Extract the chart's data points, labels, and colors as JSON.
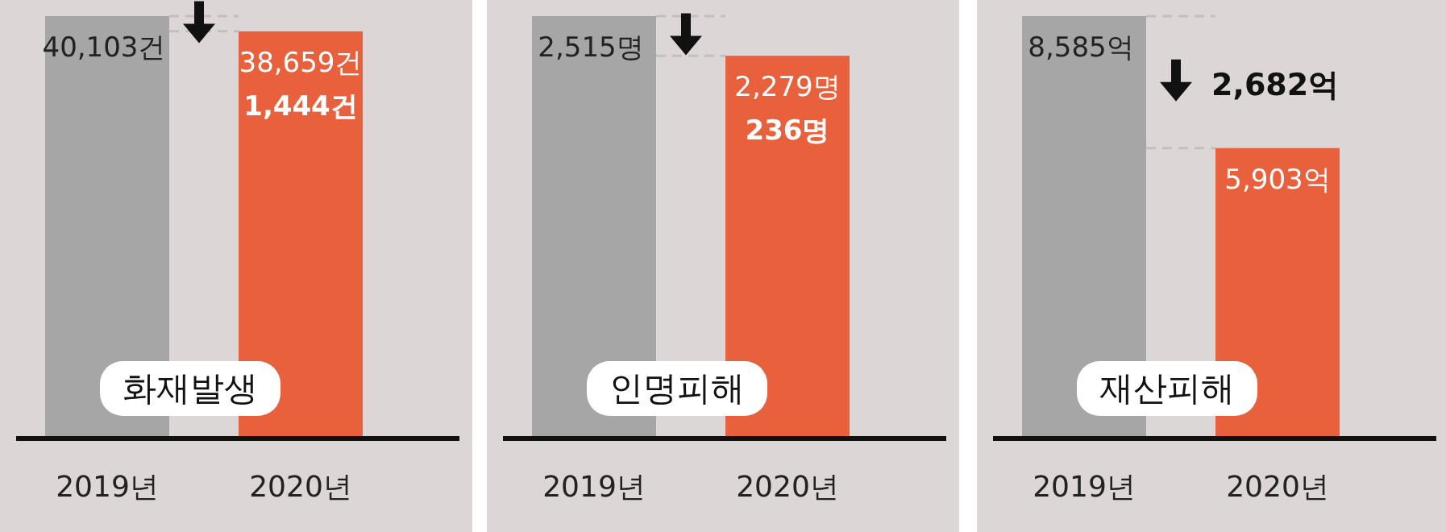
{
  "chart_data": [
    {
      "type": "bar",
      "title": "화재발생",
      "categories": [
        "2019년",
        "2020년"
      ],
      "values": [
        40103,
        38659
      ],
      "colors": [
        "#a6a6a6",
        "#e8603c"
      ],
      "value_labels": [
        "40,103건",
        "38,659건"
      ],
      "ref_lines": [
        {
          "axis": "y",
          "value": 40103,
          "line_style": "dashed",
          "color": "#c4bebe"
        },
        {
          "axis": "y",
          "value": 38659,
          "line_style": "dashed",
          "color": "#c4bebe"
        }
      ],
      "annotations": [
        "1,444건"
      ]
    },
    {
      "type": "bar",
      "title": "인명피해",
      "categories": [
        "2019년",
        "2020년"
      ],
      "values": [
        2515,
        2279
      ],
      "colors": [
        "#a6a6a6",
        "#e8603c"
      ],
      "value_labels": [
        "2,515명",
        "2,279명"
      ],
      "ref_lines": [
        {
          "axis": "y",
          "value": 2515,
          "line_style": "dashed",
          "color": "#c4bebe"
        },
        {
          "axis": "y",
          "value": 2279,
          "line_style": "dashed",
          "color": "#c4bebe"
        }
      ],
      "annotations": [
        "236명"
      ]
    },
    {
      "type": "bar",
      "title": "재산피해",
      "categories": [
        "2019년",
        "2020년"
      ],
      "values": [
        8585,
        5903
      ],
      "colors": [
        "#a6a6a6",
        "#e8603c"
      ],
      "value_labels": [
        "8,585억",
        "5,903억"
      ],
      "ref_lines": [
        {
          "axis": "y",
          "value": 8585,
          "line_style": "dashed",
          "color": "#c4bebe"
        },
        {
          "axis": "y",
          "value": 5903,
          "line_style": "dashed",
          "color": "#c4bebe"
        }
      ],
      "annotations": [
        "2,682억"
      ]
    }
  ]
}
